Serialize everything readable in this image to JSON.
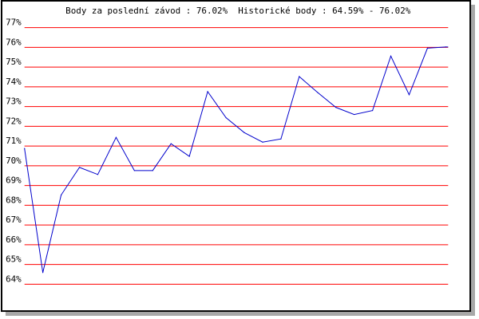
{
  "chart_data": {
    "type": "line",
    "title": "Body za poslední závod : 76.02%  Historické body : 64.59% - 76.02%",
    "xlabel": "",
    "ylabel": "",
    "ylim": [
      64,
      77
    ],
    "y_ticks": [
      "64%",
      "65%",
      "66%",
      "67%",
      "68%",
      "69%",
      "70%",
      "71%",
      "72%",
      "73%",
      "74%",
      "75%",
      "76%",
      "77%"
    ],
    "y_tick_values": [
      64,
      65,
      66,
      67,
      68,
      69,
      70,
      71,
      72,
      73,
      74,
      75,
      76,
      77
    ],
    "grid": true,
    "colors": {
      "line": "#0000cc",
      "grid": "#ff0000",
      "border": "#000000",
      "shadow": "#a8a8a8"
    },
    "series": [
      {
        "values": [
          70.88,
          64.59,
          68.52,
          69.92,
          69.56,
          71.44,
          69.76,
          69.76,
          71.12,
          70.48,
          73.76,
          72.44,
          71.68,
          71.2,
          71.36,
          74.52,
          73.72,
          72.96,
          72.6,
          72.8,
          75.56,
          73.6,
          75.96,
          76.02
        ]
      }
    ]
  }
}
